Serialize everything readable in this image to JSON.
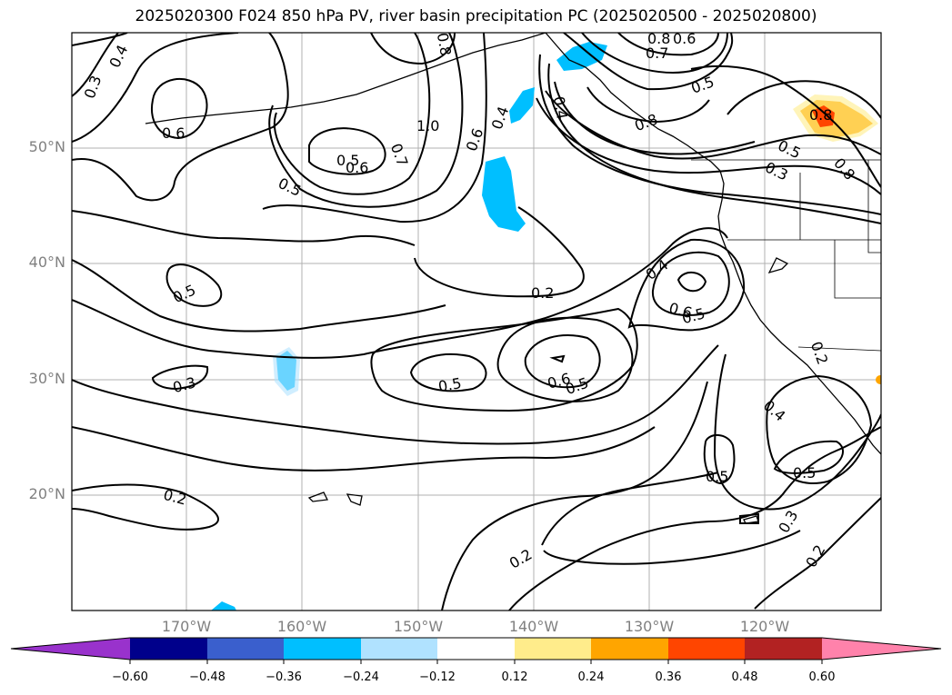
{
  "title": "2025020300 F024 850 hPa PV, river basin precipitation PC (2025020500 - 2025020800)",
  "lat_labels": [
    "50°N",
    "40°N",
    "30°N",
    "20°N"
  ],
  "lon_labels": [
    "170°W",
    "160°W",
    "150°W",
    "140°W",
    "130°W",
    "120°W"
  ],
  "contour_labels": [
    "0.4",
    "0.3",
    "0.6",
    "0.5",
    "0.6",
    "0.7",
    "0.5",
    "1.0",
    "0.8",
    "0.6",
    "0.4",
    "0.4",
    "0.8",
    "0.7",
    "0.6",
    "0.5",
    "0.8",
    "0.8",
    "0.5",
    "0.3",
    "0.8",
    "0.5",
    "0.2",
    "0.4",
    "0.6",
    "0.5",
    "0.3",
    "0.5",
    "0.6",
    "0.5",
    "0.2",
    "0.4",
    "0.5",
    "0.5",
    "0.3",
    "0.2",
    "0.2",
    "0.2"
  ],
  "colorbar": {
    "ticks": [
      "−0.60",
      "−0.48",
      "−0.36",
      "−0.24",
      "−0.12",
      "0.12",
      "0.24",
      "0.36",
      "0.48",
      "0.60"
    ],
    "colors": [
      "#9932cc",
      "#00008b",
      "#3a5fcd",
      "#00bfff",
      "#b0e2ff",
      "#ffffff",
      "#ffec8b",
      "#ffa500",
      "#ff4500",
      "#b22222",
      "#ff82ab"
    ]
  }
}
